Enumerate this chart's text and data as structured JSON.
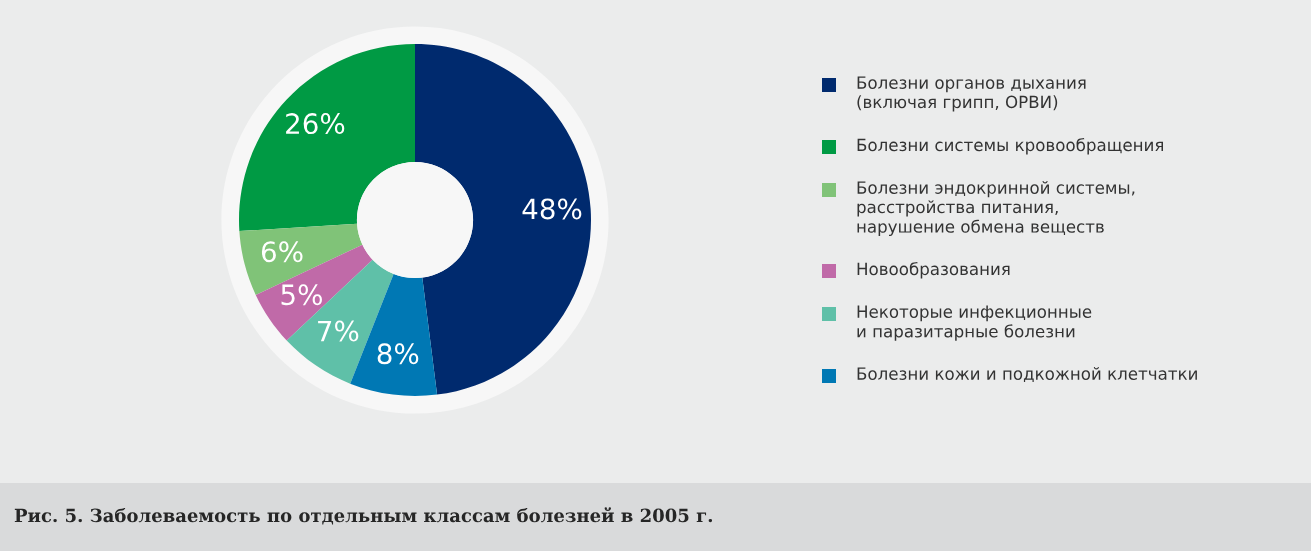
{
  "chart_data": {
    "type": "donut",
    "title": "Рис. 5. Заболеваемость по отдельным классам болезней в 2005 г.",
    "categories": [
      "Болезни органов дыхания\n(включая грипп, ОРВИ)",
      "Болезни системы кровообращения",
      "Болезни эндокринной системы,\nрасстройства питания,\nнарушение обмена веществ",
      "Новообразования",
      "Некоторые инфекционные\nи паразитарные болезни",
      "Болезни кожи и подкожной клетчатки"
    ],
    "values": [
      48,
      26,
      6,
      5,
      7,
      8
    ],
    "value_labels": [
      "48%",
      "26%",
      "6%",
      "5%",
      "7%",
      "8%"
    ],
    "colors": [
      "#002a6e",
      "#009a44",
      "#80c378",
      "#c06aa8",
      "#5fc0a8",
      "#0078b4"
    ],
    "legend": "right"
  }
}
